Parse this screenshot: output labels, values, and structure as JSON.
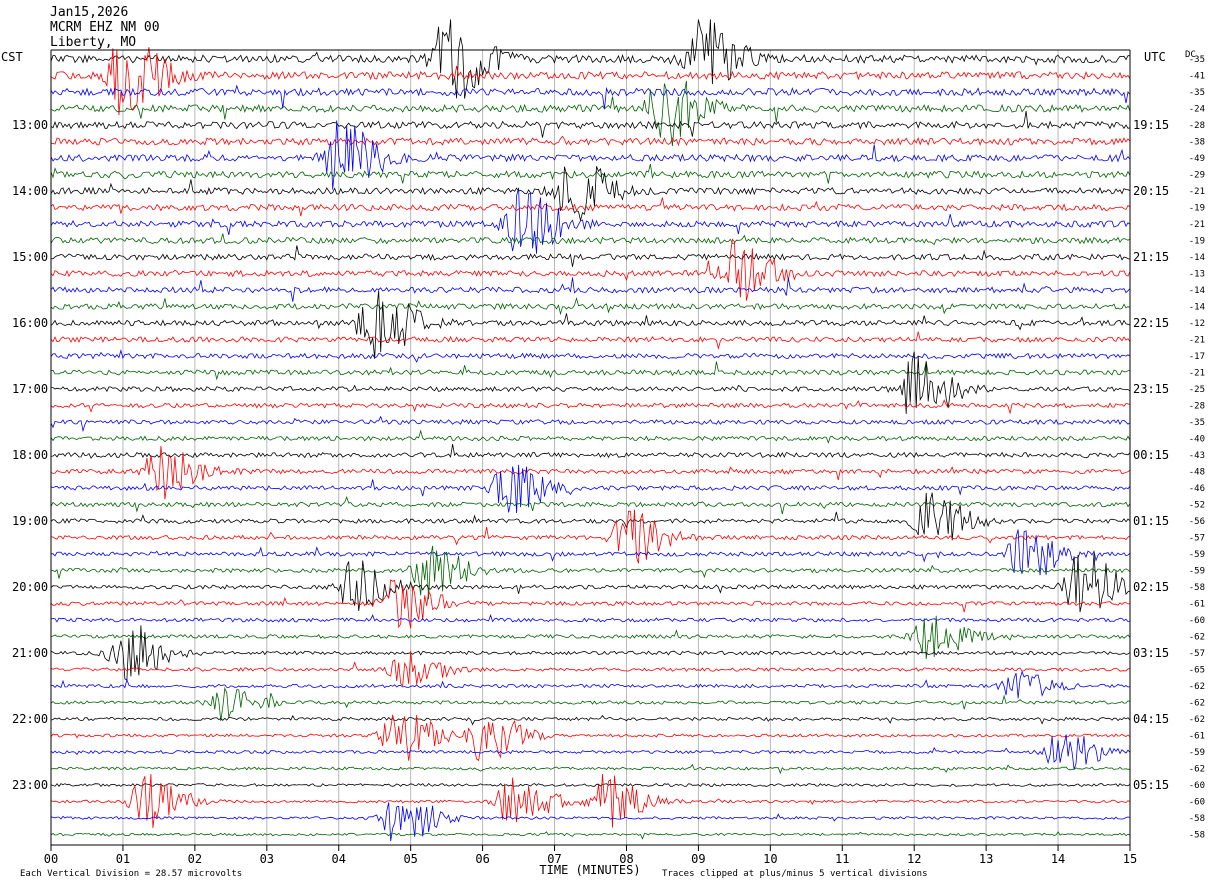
{
  "header": {
    "date": "Jan15,2026",
    "station": "MCRM EHZ NM 00",
    "location": "Liberty, MO"
  },
  "left_axis_label": "CST",
  "right_axis_label": "UTC",
  "dc_label": "DC",
  "colors": {
    "trace_cycle": [
      "#000000",
      "#ff0000",
      "#0000ff",
      "#006400"
    ]
  },
  "chart_data": {
    "type": "line",
    "title": "",
    "xlabel": "TIME (MINUTES)",
    "ylabel": "",
    "xlim": [
      0,
      15
    ],
    "x_ticks": [
      "00",
      "01",
      "02",
      "03",
      "04",
      "05",
      "06",
      "07",
      "08",
      "09",
      "10",
      "11",
      "12",
      "13",
      "14",
      "15"
    ],
    "grid": true,
    "row_count": 48,
    "first_row_time_cst": "12:00",
    "row_interval_minutes": 15,
    "cst_labels": [
      "13:00",
      "14:00",
      "15:00",
      "16:00",
      "17:00",
      "18:00",
      "19:00",
      "20:00",
      "21:00",
      "22:00",
      "23:00"
    ],
    "utc_labels": [
      "19:15",
      "20:15",
      "21:15",
      "22:15",
      "23:15",
      "00:15",
      "01:15",
      "02:15",
      "03:15",
      "04:15",
      "05:15"
    ],
    "hour_label_rows": [
      4,
      8,
      12,
      16,
      20,
      24,
      28,
      32,
      36,
      40,
      44
    ],
    "dc_offsets": [
      -35,
      -41,
      -35,
      -24,
      -28,
      -38,
      -49,
      -29,
      -21,
      -19,
      -21,
      -19,
      -14,
      -13,
      -14,
      -14,
      -12,
      -21,
      -17,
      -21,
      -25,
      -28,
      -35,
      -40,
      -43,
      -48,
      -46,
      -52,
      -56,
      -57,
      -59,
      -59,
      -58,
      -61,
      -60,
      -62,
      -57,
      -65,
      -62,
      -62,
      -62,
      -61,
      -59,
      -62,
      -60,
      -60,
      -58,
      -58
    ],
    "events": [
      {
        "row": 0,
        "minute": 5.5,
        "amplitude": 5
      },
      {
        "row": 0,
        "minute": 9.0,
        "amplitude": 5
      },
      {
        "row": 1,
        "minute": 1.0,
        "amplitude": 5
      },
      {
        "row": 3,
        "minute": 8.5,
        "amplitude": 4
      },
      {
        "row": 6,
        "minute": 4.0,
        "amplitude": 4
      },
      {
        "row": 8,
        "minute": 7.2,
        "amplitude": 4
      },
      {
        "row": 10,
        "minute": 6.5,
        "amplitude": 4
      },
      {
        "row": 13,
        "minute": 9.5,
        "amplitude": 4
      },
      {
        "row": 16,
        "minute": 4.5,
        "amplitude": 4
      },
      {
        "row": 20,
        "minute": 12.0,
        "amplitude": 4
      },
      {
        "row": 25,
        "minute": 1.5,
        "amplitude": 3
      },
      {
        "row": 26,
        "minute": 6.3,
        "amplitude": 3
      },
      {
        "row": 28,
        "minute": 12.2,
        "amplitude": 3
      },
      {
        "row": 29,
        "minute": 8.0,
        "amplitude": 3
      },
      {
        "row": 30,
        "minute": 13.5,
        "amplitude": 3
      },
      {
        "row": 31,
        "minute": 5.2,
        "amplitude": 3
      },
      {
        "row": 32,
        "minute": 4.2,
        "amplitude": 3
      },
      {
        "row": 32,
        "minute": 14.3,
        "amplitude": 4
      },
      {
        "row": 33,
        "minute": 4.8,
        "amplitude": 3
      },
      {
        "row": 35,
        "minute": 12.2,
        "amplitude": 2.5
      },
      {
        "row": 36,
        "minute": 1.0,
        "amplitude": 3.5
      },
      {
        "row": 37,
        "minute": 4.9,
        "amplitude": 2
      },
      {
        "row": 38,
        "minute": 13.4,
        "amplitude": 1.5
      },
      {
        "row": 39,
        "minute": 2.4,
        "amplitude": 1.5
      },
      {
        "row": 41,
        "minute": 4.8,
        "amplitude": 3
      },
      {
        "row": 41,
        "minute": 6.0,
        "amplitude": 3
      },
      {
        "row": 42,
        "minute": 14.0,
        "amplitude": 2.5
      },
      {
        "row": 45,
        "minute": 1.3,
        "amplitude": 3
      },
      {
        "row": 45,
        "minute": 6.4,
        "amplitude": 3
      },
      {
        "row": 45,
        "minute": 7.7,
        "amplitude": 3
      },
      {
        "row": 46,
        "minute": 4.8,
        "amplitude": 3
      }
    ]
  },
  "footer": {
    "scale_note": "Each Vertical Division = 28.57 microvolts",
    "clip_note": "Traces clipped at plus/minus 5 vertical divisions"
  }
}
